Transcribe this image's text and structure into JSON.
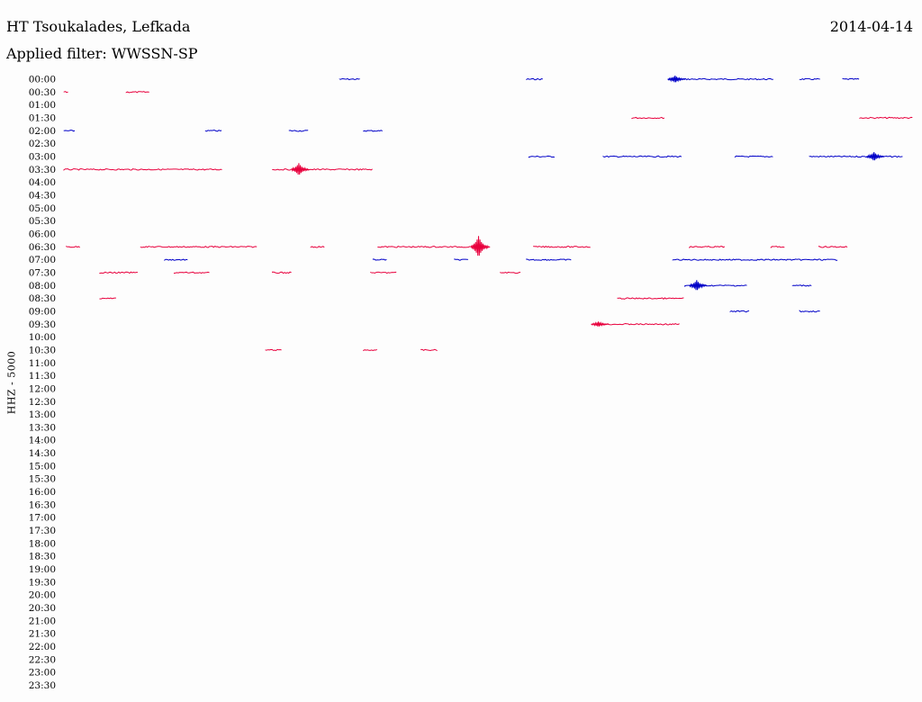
{
  "header": {
    "station": "HT Tsoukalades, Lefkada",
    "date": "2014-04-14",
    "filter": "Applied filter: WWSSN-SP"
  },
  "colors": {
    "odd_row": "#e8003d",
    "even_row": "#0000c8"
  },
  "chart_data": {
    "type": "helicorder",
    "ylabel": "HHZ - 5000",
    "row_minutes": 30,
    "x_range": [
      0,
      30
    ],
    "rows": [
      {
        "label": "00:00",
        "segments": [
          [
            11.5,
            12.4
          ],
          [
            19.3,
            20.0
          ],
          [
            25.2,
            29.6
          ],
          [
            30.7,
            31.6
          ],
          [
            32.5,
            33.2
          ]
        ],
        "events": [
          [
            25.5,
            4
          ]
        ]
      },
      {
        "label": "00:30",
        "segments": [
          [
            0.0,
            0.2
          ],
          [
            2.6,
            3.6
          ]
        ],
        "events": []
      },
      {
        "label": "01:00",
        "segments": [],
        "events": []
      },
      {
        "label": "01:30",
        "segments": [
          [
            23.7,
            25.1
          ],
          [
            33.2,
            35.4
          ]
        ],
        "events": []
      },
      {
        "label": "02:00",
        "segments": [
          [
            0.0,
            0.5
          ],
          [
            5.9,
            6.6
          ],
          [
            9.4,
            10.2
          ],
          [
            12.5,
            13.3
          ]
        ],
        "events": []
      },
      {
        "label": "02:30",
        "segments": [],
        "events": []
      },
      {
        "label": "03:00",
        "segments": [
          [
            19.4,
            20.5
          ],
          [
            22.5,
            25.8
          ],
          [
            28.0,
            29.6
          ],
          [
            31.1,
            35.0
          ]
        ],
        "events": [
          [
            33.8,
            5
          ]
        ]
      },
      {
        "label": "03:30",
        "segments": [
          [
            0.0,
            6.6
          ],
          [
            8.7,
            12.9
          ]
        ],
        "events": [
          [
            9.8,
            7
          ]
        ]
      },
      {
        "label": "04:00",
        "segments": [],
        "events": []
      },
      {
        "label": "04:30",
        "segments": [],
        "events": []
      },
      {
        "label": "05:00",
        "segments": [],
        "events": []
      },
      {
        "label": "05:30",
        "segments": [],
        "events": []
      },
      {
        "label": "06:00",
        "segments": [],
        "events": []
      },
      {
        "label": "06:30",
        "segments": [
          [
            0.1,
            0.7
          ],
          [
            3.2,
            8.1
          ],
          [
            10.3,
            10.9
          ],
          [
            13.1,
            17.8
          ],
          [
            19.6,
            22.0
          ],
          [
            26.1,
            27.6
          ],
          [
            29.5,
            30.1
          ],
          [
            31.5,
            32.7
          ]
        ],
        "events": [
          [
            17.3,
            12
          ]
        ]
      },
      {
        "label": "07:00",
        "segments": [
          [
            4.2,
            5.2
          ],
          [
            12.9,
            13.5
          ],
          [
            16.3,
            16.9
          ],
          [
            19.3,
            21.2
          ],
          [
            25.4,
            32.3
          ]
        ],
        "events": []
      },
      {
        "label": "07:30",
        "segments": [
          [
            1.5,
            3.1
          ],
          [
            4.6,
            6.1
          ],
          [
            8.7,
            9.5
          ],
          [
            12.8,
            13.9
          ],
          [
            18.2,
            19.1
          ]
        ],
        "events": []
      },
      {
        "label": "08:00",
        "segments": [
          [
            25.9,
            28.5
          ],
          [
            30.4,
            31.2
          ]
        ],
        "events": [
          [
            26.4,
            6
          ]
        ]
      },
      {
        "label": "08:30",
        "segments": [
          [
            1.5,
            2.2
          ],
          [
            23.1,
            25.9
          ]
        ],
        "events": []
      },
      {
        "label": "09:00",
        "segments": [
          [
            27.8,
            28.6
          ],
          [
            30.7,
            31.6
          ]
        ],
        "events": []
      },
      {
        "label": "09:30",
        "segments": [
          [
            22.3,
            25.7
          ]
        ],
        "events": [
          [
            22.3,
            3
          ]
        ]
      },
      {
        "label": "10:00",
        "segments": [],
        "events": []
      },
      {
        "label": "10:30",
        "segments": [
          [
            8.4,
            9.1
          ],
          [
            12.5,
            13.1
          ],
          [
            14.9,
            15.6
          ]
        ],
        "events": []
      },
      {
        "label": "11:00",
        "segments": [],
        "events": []
      },
      {
        "label": "11:30",
        "segments": [],
        "events": []
      },
      {
        "label": "12:00",
        "segments": [],
        "events": []
      },
      {
        "label": "12:30",
        "segments": [],
        "events": []
      },
      {
        "label": "13:00",
        "segments": [],
        "events": []
      },
      {
        "label": "13:30",
        "segments": [],
        "events": []
      },
      {
        "label": "14:00",
        "segments": [],
        "events": []
      },
      {
        "label": "14:30",
        "segments": [],
        "events": []
      },
      {
        "label": "15:00",
        "segments": [],
        "events": []
      },
      {
        "label": "15:30",
        "segments": [],
        "events": []
      },
      {
        "label": "16:00",
        "segments": [],
        "events": []
      },
      {
        "label": "16:30",
        "segments": [],
        "events": []
      },
      {
        "label": "17:00",
        "segments": [],
        "events": []
      },
      {
        "label": "17:30",
        "segments": [],
        "events": []
      },
      {
        "label": "18:00",
        "segments": [],
        "events": []
      },
      {
        "label": "18:30",
        "segments": [],
        "events": []
      },
      {
        "label": "19:00",
        "segments": [],
        "events": []
      },
      {
        "label": "19:30",
        "segments": [],
        "events": []
      },
      {
        "label": "20:00",
        "segments": [],
        "events": []
      },
      {
        "label": "20:30",
        "segments": [],
        "events": []
      },
      {
        "label": "21:00",
        "segments": [],
        "events": []
      },
      {
        "label": "21:30",
        "segments": [],
        "events": []
      },
      {
        "label": "22:00",
        "segments": [],
        "events": []
      },
      {
        "label": "22:30",
        "segments": [],
        "events": []
      },
      {
        "label": "23:00",
        "segments": [],
        "events": []
      },
      {
        "label": "23:30",
        "segments": [],
        "events": []
      }
    ]
  }
}
